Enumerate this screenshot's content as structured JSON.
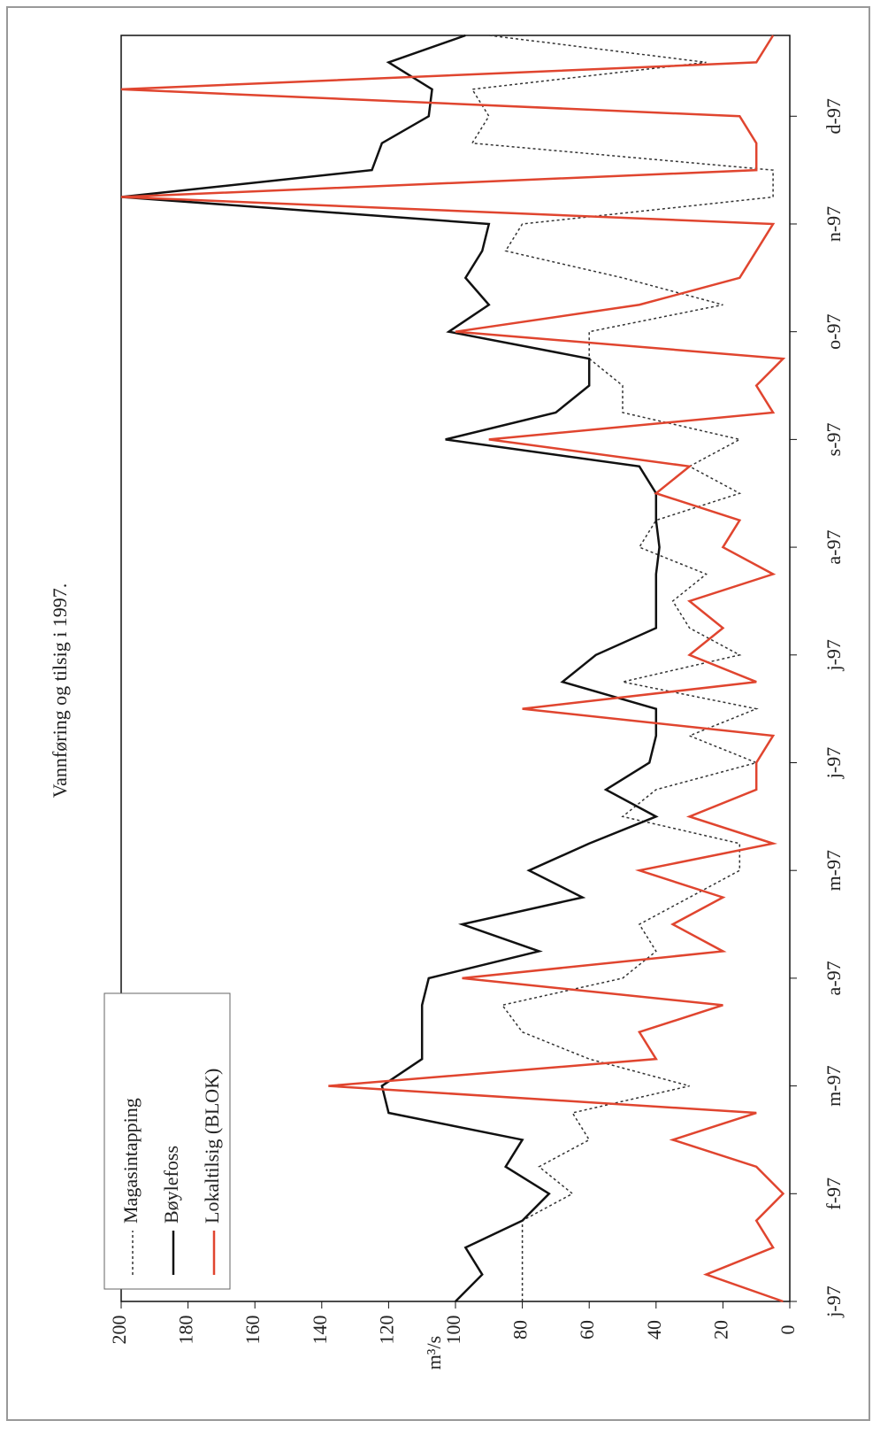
{
  "chart_data": {
    "type": "line",
    "title": "Vannføring og tilsig i 1997.",
    "y_label": "m³/s",
    "x": [
      0,
      0.25,
      0.5,
      0.75,
      1,
      1.25,
      1.5,
      1.75,
      2,
      2.25,
      2.5,
      2.75,
      3,
      3.25,
      3.5,
      3.75,
      4,
      4.25,
      4.5,
      4.75,
      5,
      5.25,
      5.5,
      5.75,
      6,
      6.25,
      6.5,
      6.75,
      7,
      7.25,
      7.5,
      7.75,
      8,
      8.25,
      8.5,
      8.75,
      9,
      9.25,
      9.5,
      9.75,
      10,
      10.25,
      10.5,
      10.75,
      11,
      11.25,
      11.5,
      11.75
    ],
    "series": [
      {
        "name": "Magasintapping",
        "color": "#333333",
        "dash": true,
        "values": [
          80,
          80,
          80,
          80,
          65,
          75,
          60,
          65,
          30,
          60,
          80,
          86,
          50,
          40,
          45,
          30,
          15,
          15,
          50,
          40,
          10,
          30,
          10,
          50,
          15,
          30,
          35,
          25,
          45,
          40,
          15,
          30,
          15,
          50,
          50,
          60,
          60,
          20,
          50,
          85,
          80,
          5,
          5,
          95,
          90,
          95,
          25,
          90
        ]
      },
      {
        "name": "Bøylefoss",
        "color": "#111111",
        "dash": false,
        "values": [
          100,
          92,
          97,
          80,
          72,
          85,
          80,
          120,
          122,
          110,
          110,
          110,
          108,
          75,
          98,
          62,
          78,
          60,
          40,
          55,
          42,
          40,
          40,
          68,
          58,
          40,
          40,
          40,
          39,
          40,
          40,
          45,
          103,
          70,
          60,
          60,
          102,
          90,
          97,
          92,
          90,
          200,
          125,
          122,
          108,
          107,
          120,
          97
        ]
      },
      {
        "name": "Lokaltilsig (BLOK)",
        "color": "#e0452f",
        "dash": false,
        "values": [
          2,
          25,
          5,
          10,
          2,
          10,
          35,
          10,
          138,
          40,
          45,
          20,
          98,
          20,
          35,
          20,
          45,
          5,
          30,
          10,
          10,
          5,
          80,
          10,
          30,
          20,
          30,
          5,
          20,
          15,
          40,
          30,
          90,
          5,
          10,
          2,
          100,
          45,
          15,
          10,
          5,
          200,
          10,
          10,
          15,
          200,
          10,
          5
        ]
      }
    ],
    "xlim": [
      0,
      11.75
    ],
    "xticks": [
      {
        "value": 0,
        "label": "j-97"
      },
      {
        "value": 1,
        "label": "f-97"
      },
      {
        "value": 2,
        "label": "m-97"
      },
      {
        "value": 3,
        "label": "a-97"
      },
      {
        "value": 4,
        "label": "m-97"
      },
      {
        "value": 5,
        "label": "j-97"
      },
      {
        "value": 6,
        "label": "j-97"
      },
      {
        "value": 7,
        "label": "a-97"
      },
      {
        "value": 8,
        "label": "s-97"
      },
      {
        "value": 9,
        "label": "o-97"
      },
      {
        "value": 10,
        "label": "n-97"
      },
      {
        "value": 11,
        "label": "d-97"
      }
    ],
    "ylim": [
      0,
      200
    ],
    "yticks": [
      0,
      20,
      40,
      60,
      80,
      100,
      120,
      140,
      160,
      180,
      200
    ]
  }
}
